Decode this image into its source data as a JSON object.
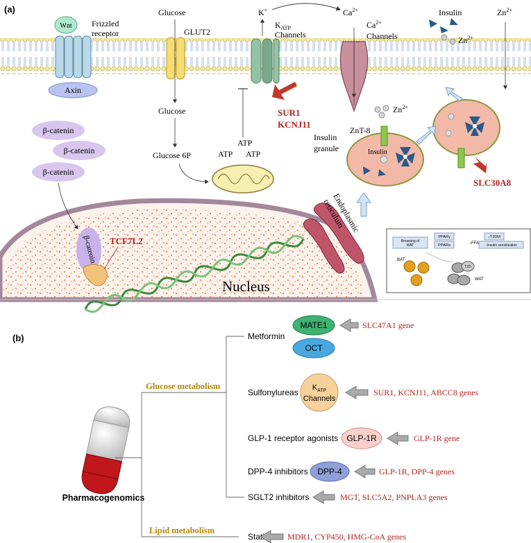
{
  "panel_a": {
    "label": "(a)",
    "wnt": "Wnt",
    "frizzled_line1": "Frizzled",
    "frizzled_line2": "receptor",
    "axin": "Axin",
    "glucose_top": "Glucose",
    "glut2": "GLUT2",
    "glucose_mid": "Glucose",
    "glucose_6p": "Glucose 6P",
    "atp": [
      "ATP",
      "ATP",
      "ATP"
    ],
    "k_ion": "K",
    "k_sup": "+",
    "katp_k": "K",
    "katp_sub": "ATP",
    "katp_channels": "Channels",
    "sur1": "SUR1",
    "kcnj11": "KCNJ11",
    "ca_top": "Ca",
    "ca_top_sup": "2+",
    "ca_channel": "Ca",
    "ca_channel_sup": "2+",
    "ca_channels": "Channels",
    "insulin": "Insulin",
    "zn_near_insulin": "Zn",
    "zn_near_insulin_sup": "2+",
    "zn_right": "Zn",
    "zn_right_sup": "2+",
    "beta_catenin": [
      "β-catenin",
      "β-catenin",
      "β-catenin",
      "β-catenin"
    ],
    "tcf7l2": "TCF7L2",
    "zn_granule": "Zn",
    "zn_granule_sup": "2+",
    "znt8": "ZnT-8",
    "insulin_granule_line1": "Insulin",
    "insulin_granule_line2": "granule",
    "granule_insulin_label": "Insulin",
    "slc30a8": "SLC30A8",
    "er_line1": "Endoplasmic",
    "er_line2": "reticulum",
    "nucleus": "Nucleus",
    "inset": {
      "pparg": "PPARγ",
      "ppara": "PPARα",
      "browning_line1": "Browning of",
      "browning_line2": "WAT",
      "ffa": "↓FFA",
      "t2dm": "↓T2DM",
      "insulin_sens": "↑Insulin sensitization",
      "bat": "BAT",
      "wat": "WAT",
      "ttd": "TZD"
    }
  },
  "panel_b": {
    "label": "(b)",
    "root": "Pharmacogenomics",
    "glucose_metabolism": "Glucose metabolism",
    "lipid_metabolism": "Lipid metabolism",
    "drugs": [
      {
        "name": "Metformin"
      },
      {
        "name": "Sulfonylureas"
      },
      {
        "name": "GLP-1 receptor agonists"
      },
      {
        "name": "DPP-4 inhibitors"
      },
      {
        "name": "SGLT2 inhibitors"
      },
      {
        "name": "Statins"
      }
    ],
    "targets": {
      "mate1": "MATE1",
      "oct": "OCT",
      "katp_k": "K",
      "katp_sub": "ATP",
      "katp_channels": "Channels",
      "glp1r": "GLP-1R",
      "dpp4": "DPP-4"
    },
    "genes": {
      "metformin": "SLC47A1 gene",
      "sulfonylureas": "SUR1, KCNJ11, ABCC8 genes",
      "glp1": "GLP-1R gene",
      "dpp4": "GLP-1R, DPP-4 genes",
      "sglt2": "MGT, SLC5A2, PNPLA3 genes",
      "statins": "MDR1, CYP450, HMG-CoA genes"
    }
  },
  "colors": {
    "gene_red": "#b22222",
    "metabolism_gold": "#b8860b",
    "membrane_yellow": "#f3e9a0",
    "nucleus_dots": "#e8744a",
    "beta_catenin_purple": "#d8c6ef",
    "granule_pink": "#f2b8a8"
  }
}
